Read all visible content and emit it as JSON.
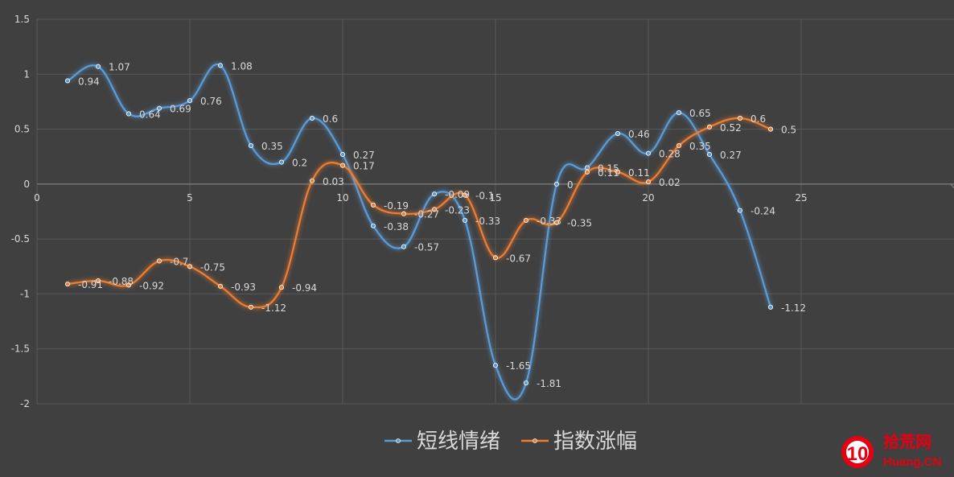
{
  "chart_data": {
    "type": "line",
    "smooth": true,
    "xlim": [
      0,
      30
    ],
    "ylim": [
      -2,
      1.5
    ],
    "x_ticks": [
      "0",
      "5",
      "10",
      "15",
      "20",
      "25"
    ],
    "y_ticks": [
      "1.5",
      "1",
      "0.5",
      "0",
      "-0.5",
      "-1",
      "-1.5",
      "-2"
    ],
    "grid": true,
    "legend_position": "bottom",
    "background": "#404040",
    "series": [
      {
        "name": "短线情绪",
        "color": "#5b9bd5",
        "x": [
          1,
          2,
          3,
          4,
          5,
          6,
          7,
          8,
          9,
          10,
          11,
          12,
          13,
          14,
          15,
          16,
          17,
          18,
          19,
          20,
          21,
          22,
          23,
          24
        ],
        "values": [
          0.94,
          1.07,
          0.64,
          0.69,
          0.76,
          1.08,
          0.35,
          0.2,
          0.6,
          0.27,
          -0.38,
          -0.57,
          -0.09,
          -0.33,
          -1.65,
          -1.81,
          0,
          0.15,
          0.46,
          0.28,
          0.65,
          0.27,
          -0.24,
          -1.12
        ],
        "labels": [
          "0.94",
          "1.07",
          "0.64",
          "0.69",
          "0.76",
          "1.08",
          "0.35",
          "0.2",
          "0.6",
          "0.27",
          "-0.38",
          "-0.57",
          "-0.09",
          "-0.33",
          "-1.65",
          "-1.81",
          "0",
          "0.15",
          "0.46",
          "0.28",
          "0.65",
          "0.27",
          "-0.24",
          "-1.12"
        ]
      },
      {
        "name": "指数涨幅",
        "color": "#ed7d31",
        "x": [
          1,
          2,
          3,
          4,
          5,
          6,
          7,
          8,
          9,
          10,
          11,
          12,
          13,
          14,
          15,
          16,
          17,
          18,
          19,
          20,
          21,
          22,
          23,
          24
        ],
        "values": [
          -0.91,
          -0.88,
          -0.92,
          -0.7,
          -0.75,
          -0.93,
          -1.12,
          -0.94,
          0.03,
          0.17,
          -0.19,
          -0.27,
          -0.23,
          -0.1,
          -0.67,
          -0.33,
          -0.35,
          0.11,
          0.11,
          0.02,
          0.35,
          0.52,
          0.6,
          0.5
        ],
        "labels": [
          "-0.91",
          "-0.88",
          "-0.92",
          "-0.7",
          "-0.75",
          "-0.93",
          "-1.12",
          "-0.94",
          "0.03",
          "0.17",
          "-0.19",
          "-0.27",
          "-0.23",
          "-0.1",
          "-0.67",
          "-0.33",
          "-0.35",
          "0.11",
          "0.11",
          "0.02",
          "0.35",
          "0.52",
          "0.6",
          "0.5"
        ]
      }
    ]
  },
  "watermark": {
    "logo_number": "10",
    "cn_text": "拾荒网",
    "en_text": "Huang.CN",
    "color": "#e60012"
  }
}
